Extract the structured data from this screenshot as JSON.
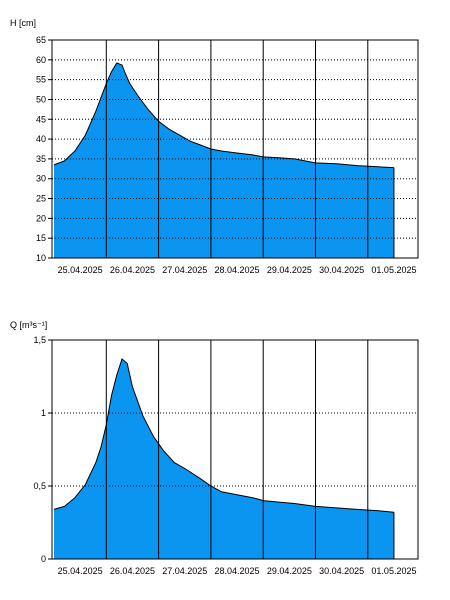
{
  "chart_data": [
    {
      "type": "area",
      "ylabel": "H [cm]",
      "ylim": [
        10,
        65
      ],
      "yticks": [
        "10",
        "15",
        "20",
        "25",
        "30",
        "35",
        "40",
        "45",
        "50",
        "55",
        "60",
        "65"
      ],
      "xticks": [
        "25.04.2025",
        "26.04.2025",
        "27.04.2025",
        "28.04.2025",
        "29.04.2025",
        "30.04.2025",
        "01.05.2025"
      ],
      "xlim": [
        0,
        7
      ],
      "grid": true,
      "fill_color": "#0a96f0",
      "x": [
        0.0,
        0.2,
        0.4,
        0.6,
        0.8,
        1.0,
        1.1,
        1.2,
        1.3,
        1.35,
        1.45,
        1.6,
        1.8,
        2.0,
        2.2,
        2.4,
        2.6,
        2.8,
        3.0,
        3.2,
        3.5,
        3.8,
        4.0,
        4.3,
        4.6,
        4.8,
        5.0,
        5.4,
        5.8,
        6.2,
        6.5
      ],
      "values": [
        33.5,
        34.5,
        37,
        41,
        47,
        54,
        57,
        59.2,
        58.7,
        57,
        54,
        51,
        47.5,
        44.5,
        42.5,
        41,
        39.5,
        38.5,
        37.5,
        37,
        36.5,
        36,
        35.5,
        35.3,
        35,
        34.5,
        34,
        33.8,
        33.3,
        33,
        32.8
      ]
    },
    {
      "type": "area",
      "ylabel": "Q [m³s⁻¹]",
      "ylim": [
        0,
        1.5
      ],
      "yticks": [
        "0",
        "0,5",
        "1",
        "1,5"
      ],
      "ytick_values": [
        0,
        0.5,
        1,
        1.5
      ],
      "xticks": [
        "25.04.2025",
        "26.04.2025",
        "27.04.2025",
        "28.04.2025",
        "29.04.2025",
        "30.04.2025",
        "01.05.2025"
      ],
      "xlim": [
        0,
        7
      ],
      "grid": true,
      "fill_color": "#0a96f0",
      "x": [
        0.0,
        0.2,
        0.4,
        0.6,
        0.8,
        0.9,
        1.0,
        1.1,
        1.2,
        1.3,
        1.4,
        1.5,
        1.7,
        1.9,
        2.1,
        2.3,
        2.5,
        2.8,
        3.0,
        3.2,
        3.5,
        3.8,
        4.0,
        4.3,
        4.6,
        5.0,
        5.4,
        5.8,
        6.2,
        6.5
      ],
      "values": [
        0.34,
        0.36,
        0.42,
        0.51,
        0.66,
        0.77,
        0.92,
        1.12,
        1.26,
        1.37,
        1.34,
        1.18,
        0.98,
        0.84,
        0.74,
        0.66,
        0.62,
        0.55,
        0.5,
        0.46,
        0.44,
        0.42,
        0.4,
        0.39,
        0.38,
        0.36,
        0.35,
        0.34,
        0.33,
        0.32
      ]
    }
  ]
}
